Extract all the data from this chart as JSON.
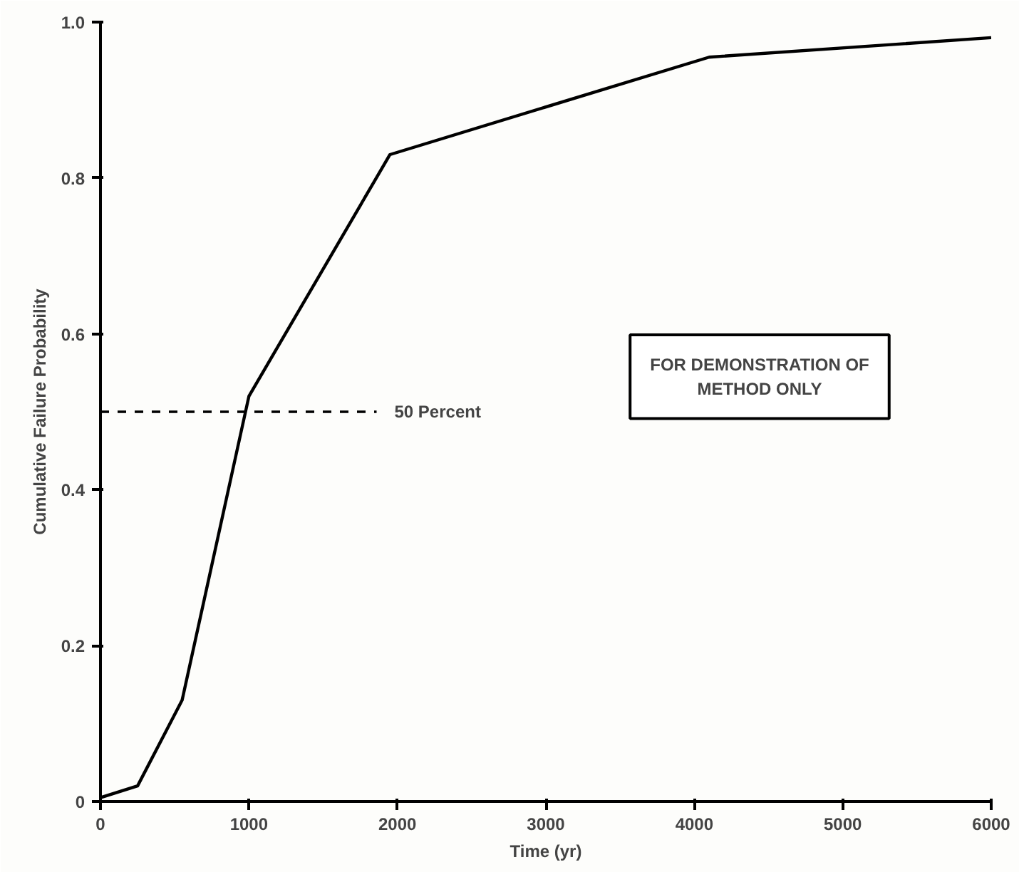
{
  "chart_data": {
    "type": "line",
    "xlabel": "Time (yr)",
    "ylabel": "Cumulative Failure Probability",
    "x": [
      0,
      250,
      550,
      1000,
      1950,
      4100,
      6000
    ],
    "series": [
      {
        "color": "#000000",
        "values": [
          0.005,
          0.02,
          0.13,
          0.52,
          0.83,
          0.955,
          0.98
        ]
      }
    ],
    "xlim": [
      0,
      6000
    ],
    "ylim": [
      0,
      1.0
    ],
    "xticks": [
      0,
      1000,
      2000,
      3000,
      4000,
      5000,
      6000
    ],
    "yticks": [
      0,
      0.2,
      0.4,
      0.6,
      0.8,
      {
        "value": 1.0,
        "label": "1.0"
      }
    ],
    "ref_lines": [
      {
        "axis": "y",
        "value": 0.5,
        "label": "50 Percent",
        "line_style": "dashed",
        "color": "#000000"
      }
    ],
    "annotations": [
      "FOR DEMONSTRATION OF\nMETHOD ONLY"
    ],
    "grid": false,
    "marker": "none",
    "line_style": "solid"
  }
}
